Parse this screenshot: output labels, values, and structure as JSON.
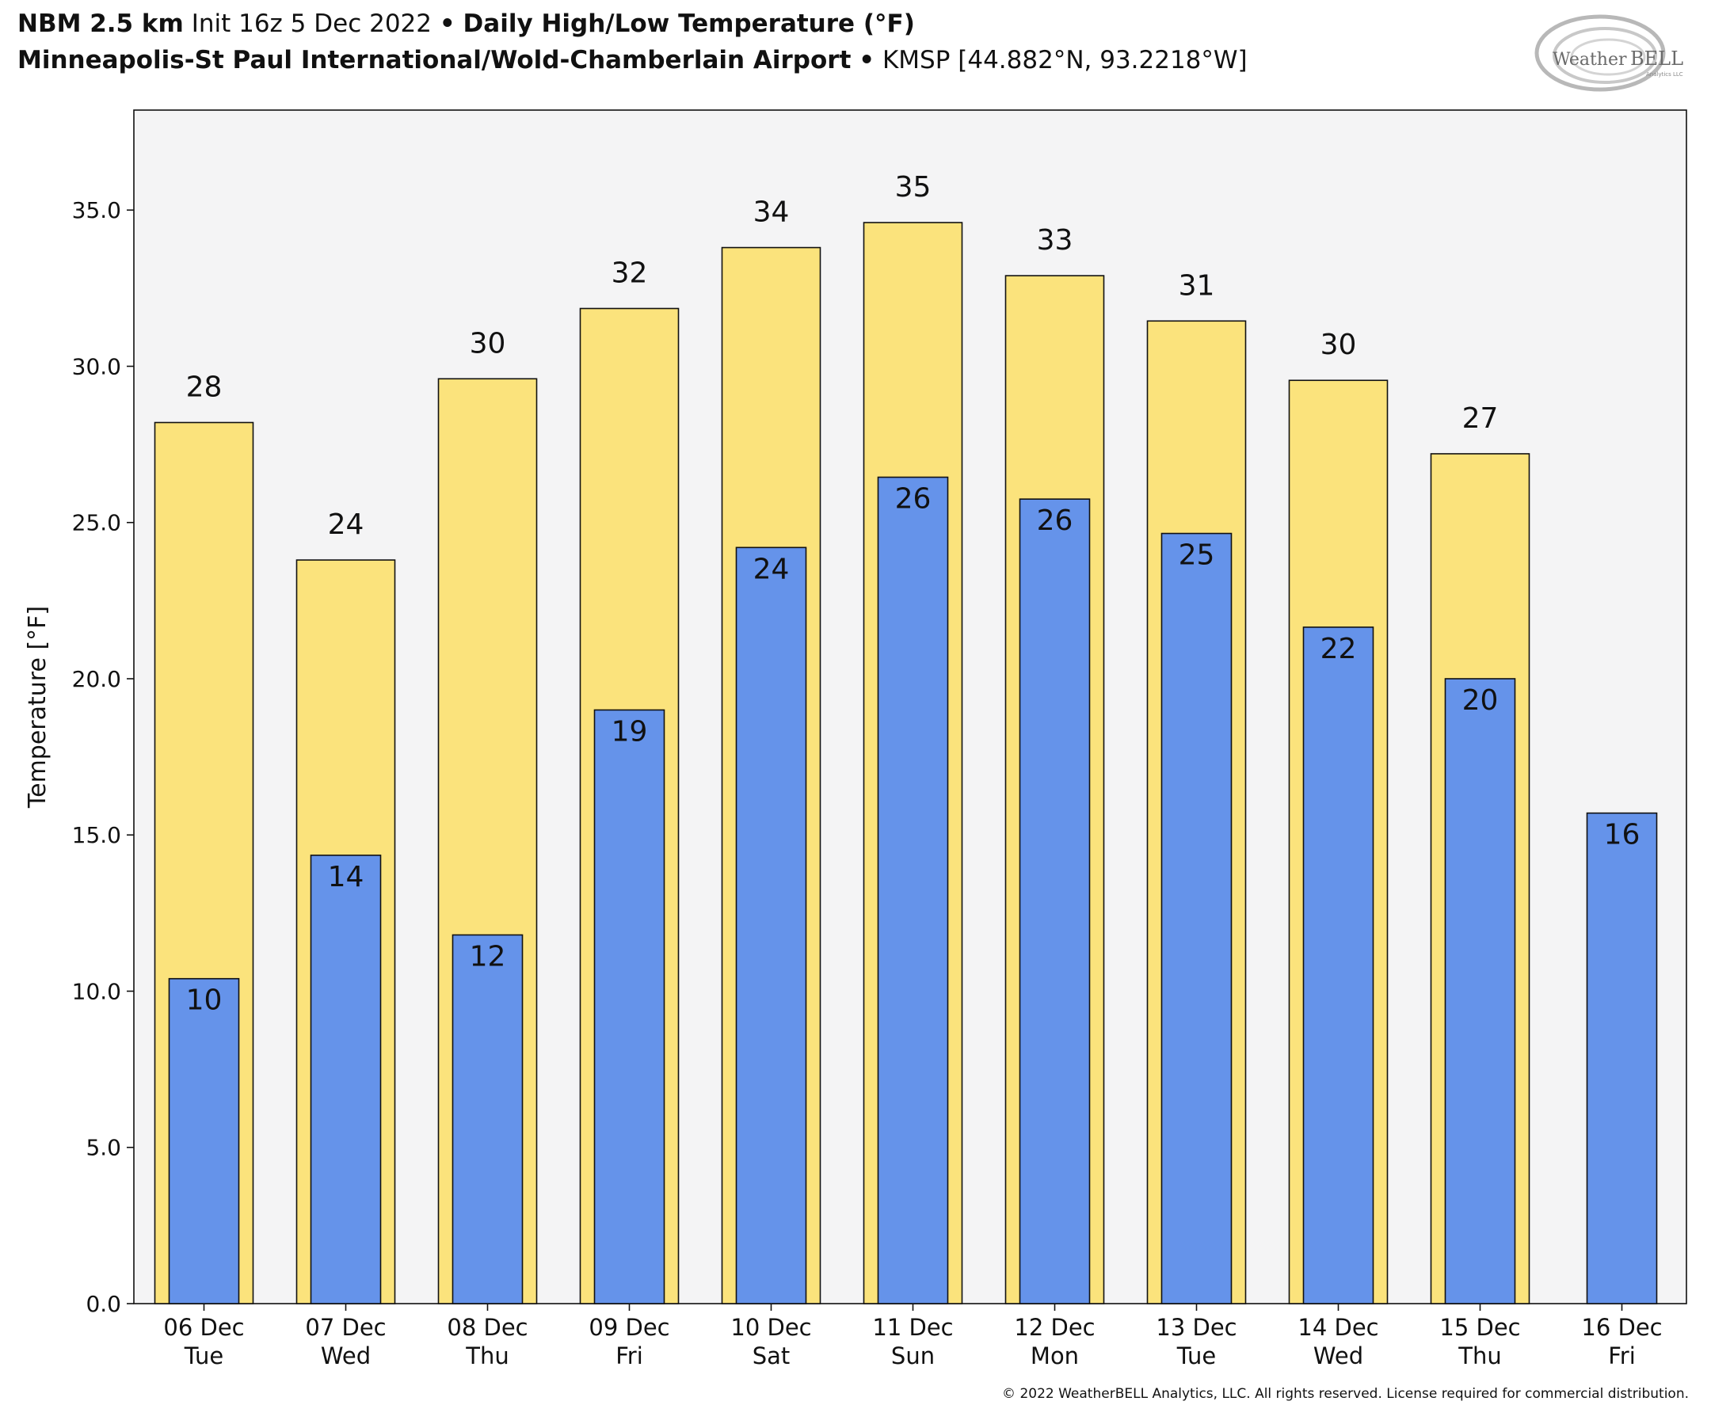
{
  "header": {
    "line1": {
      "model": "NBM 2.5 km",
      "init": "Init 16z 5 Dec 2022",
      "bullet": "•",
      "product": "Daily High/Low Temperature (°F)"
    },
    "line2": {
      "station": "Minneapolis-St Paul International/Wold-Chamberlain Airport",
      "bullet": "•",
      "code": "KMSP [44.882°N, 93.2218°W]"
    }
  },
  "logo": {
    "text_left": "Weather",
    "text_right": "BELL",
    "sub": "Analytics LLC"
  },
  "copyright": "© 2022 WeatherBELL Analytics, LLC. All rights reserved. License required for commercial distribution.",
  "colors": {
    "high": "#fbe37c",
    "low": "#6593ea",
    "plot_bg": "#f4f4f5",
    "edge": "#111111"
  },
  "chart_data": {
    "type": "bar",
    "ylabel": "Temperature [°F]",
    "ylim": [
      0,
      38.2
    ],
    "yticks": [
      "0.0",
      "5.0",
      "10.0",
      "15.0",
      "20.0",
      "25.0",
      "30.0",
      "35.0"
    ],
    "grid": false,
    "categories": [
      {
        "date": "06 Dec",
        "day": "Tue"
      },
      {
        "date": "07 Dec",
        "day": "Wed"
      },
      {
        "date": "08 Dec",
        "day": "Thu"
      },
      {
        "date": "09 Dec",
        "day": "Fri"
      },
      {
        "date": "10 Dec",
        "day": "Sat"
      },
      {
        "date": "11 Dec",
        "day": "Sun"
      },
      {
        "date": "12 Dec",
        "day": "Mon"
      },
      {
        "date": "13 Dec",
        "day": "Tue"
      },
      {
        "date": "14 Dec",
        "day": "Wed"
      },
      {
        "date": "15 Dec",
        "day": "Thu"
      },
      {
        "date": "16 Dec",
        "day": "Fri"
      }
    ],
    "series": [
      {
        "key": "high",
        "values": [
          28.2,
          23.8,
          29.6,
          31.85,
          33.8,
          34.6,
          32.9,
          31.45,
          29.55,
          27.2,
          null
        ],
        "labels": [
          "28",
          "24",
          "30",
          "32",
          "34",
          "35",
          "33",
          "31",
          "30",
          "27",
          ""
        ]
      },
      {
        "key": "low",
        "values": [
          10.4,
          14.35,
          11.8,
          19.0,
          24.2,
          26.45,
          25.75,
          24.65,
          21.65,
          20.0,
          15.7
        ],
        "labels": [
          "10",
          "14",
          "12",
          "19",
          "24",
          "26",
          "26",
          "25",
          "22",
          "20",
          "16"
        ]
      }
    ]
  }
}
